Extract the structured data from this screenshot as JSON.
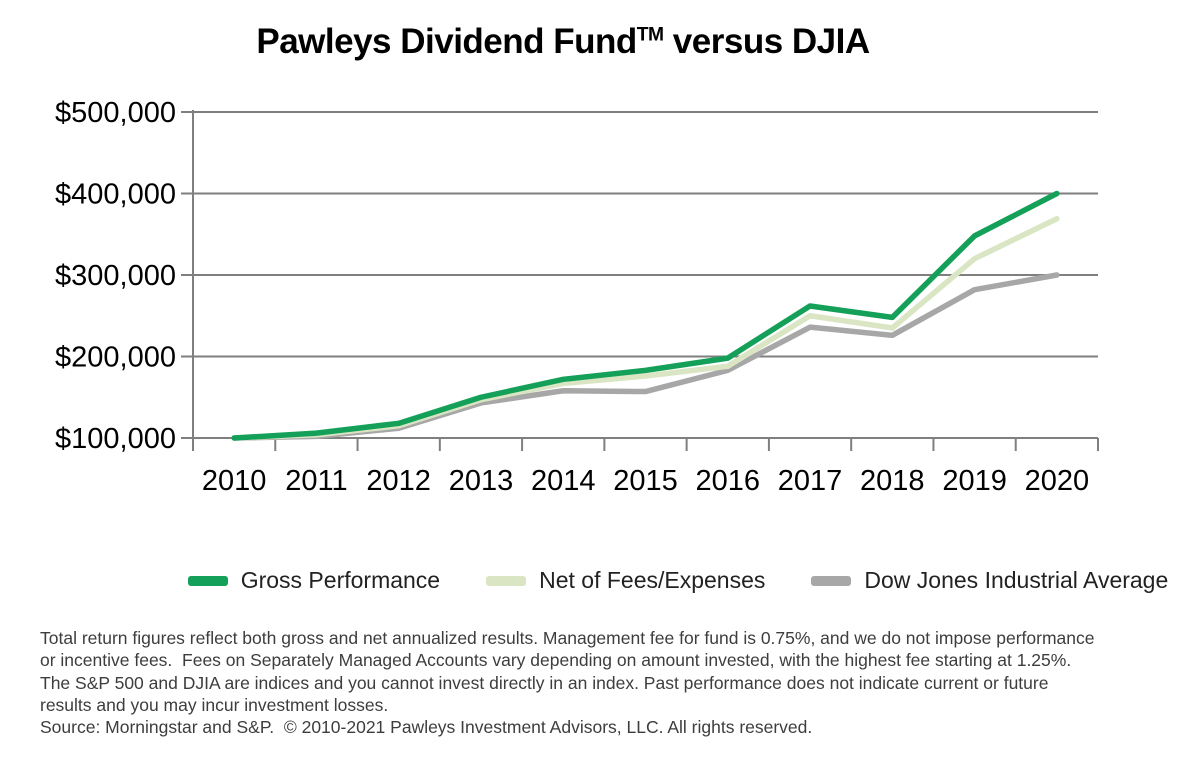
{
  "title": {
    "pre": "Pawleys Dividend Fund",
    "sup": "TM",
    "post": " versus DJIA"
  },
  "chart_data": {
    "type": "line",
    "x": [
      "2010",
      "2011",
      "2012",
      "2013",
      "2014",
      "2015",
      "2016",
      "2017",
      "2018",
      "2019",
      "2020"
    ],
    "series": [
      {
        "name": "Gross Performance",
        "color": "#14A058",
        "values": [
          100000,
          106000,
          118000,
          150000,
          172000,
          183000,
          198000,
          262000,
          248000,
          348000,
          400000
        ]
      },
      {
        "name": "Net of Fees/Expenses",
        "color": "#D9E5C3",
        "values": [
          100000,
          104000,
          115000,
          147000,
          167000,
          176000,
          188000,
          250000,
          235000,
          320000,
          369000
        ]
      },
      {
        "name": "Dow Jones Industrial Average",
        "color": "#A7A7A7",
        "values": [
          100000,
          102000,
          112000,
          143000,
          158000,
          157000,
          183000,
          236000,
          226000,
          282000,
          300000
        ]
      }
    ],
    "ylim": [
      100000,
      500000
    ],
    "ytick_step": 100000,
    "ytick_labels": [
      "$100,000",
      "$200,000",
      "$300,000",
      "$400,000",
      "$500,000"
    ],
    "axis_color": "#7F7F7F",
    "grid": "horizontal",
    "legend_position": "bottom"
  },
  "footnotes": {
    "lines": [
      "Total return figures reflect both gross and net annualized results. Management fee for fund is 0.75%, and we do not impose performance",
      "or incentive fees.  Fees on Separately Managed Accounts vary depending on amount invested, with the highest fee starting at 1.25%.",
      "The S&P 500 and DJIA are indices and you cannot invest directly in an index. Past performance does not indicate current or future",
      "results and you may incur investment losses.",
      "Source: Morningstar and S&P.  © 2010-2021 Pawleys Investment Advisors, LLC. All rights reserved."
    ]
  }
}
